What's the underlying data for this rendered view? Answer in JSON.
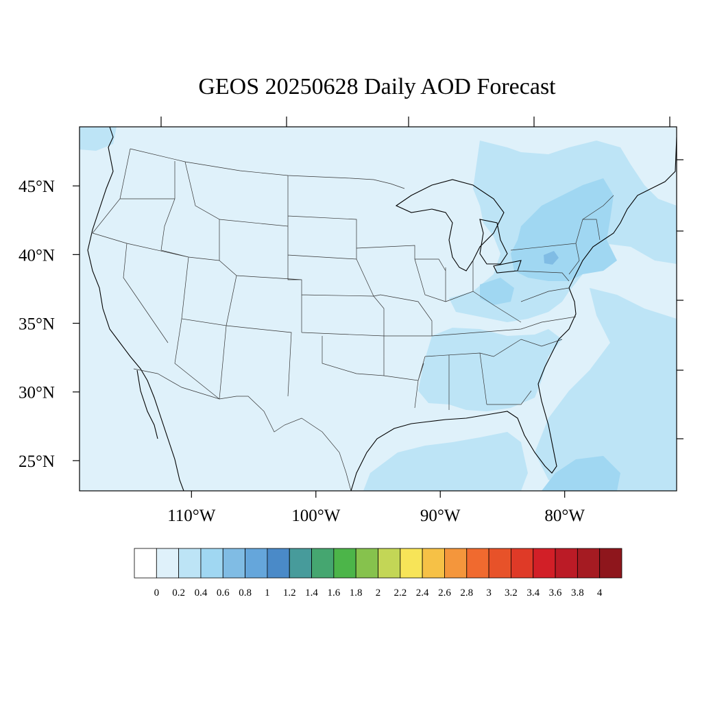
{
  "title": "GEOS 20250628 Daily AOD Forecast",
  "map": {
    "projection": "lat-lon",
    "lon_range": [
      -119,
      -71
    ],
    "lat_range": [
      22.8,
      49.3
    ],
    "lat_ticks": [
      {
        "lat": 45,
        "label": "45°N"
      },
      {
        "lat": 40,
        "label": "40°N"
      },
      {
        "lat": 35,
        "label": "35°N"
      },
      {
        "lat": 30,
        "label": "30°N"
      },
      {
        "lat": 25,
        "label": "25°N"
      }
    ],
    "lon_ticks": [
      {
        "lon": -110,
        "label": "110°W"
      },
      {
        "lon": -100,
        "label": "100°W"
      },
      {
        "lon": -90,
        "label": "90°W"
      },
      {
        "lon": -80,
        "label": "80°W"
      }
    ],
    "background_color": "#dff1fa",
    "aod_regions": [
      {
        "level": 0.2,
        "color": "#bde4f6",
        "description": "Great Lakes to New England band"
      },
      {
        "level": 0.2,
        "color": "#bde4f6",
        "description": "Ohio valley and Southeast"
      },
      {
        "level": 0.2,
        "color": "#bde4f6",
        "description": "Atlantic offshore"
      },
      {
        "level": 0.2,
        "color": "#bde4f6",
        "description": "Gulf of Mexico"
      },
      {
        "level": 0.4,
        "color": "#a0d7f2",
        "description": "Northeast corridor"
      },
      {
        "level": 0.4,
        "color": "#a0d7f2",
        "description": "Bahamas / south Florida"
      },
      {
        "level": 0.6,
        "color": "#80bce4",
        "description": "central Pennsylvania"
      }
    ]
  },
  "colorbar": {
    "colors": [
      "#ffffff",
      "#dff1fa",
      "#bde4f6",
      "#a0d7f2",
      "#80bce4",
      "#65a6db",
      "#4a8ac8",
      "#479b9b",
      "#45a670",
      "#4cb549",
      "#86c24d",
      "#c3d656",
      "#f7e458",
      "#f6c146",
      "#f4963c",
      "#f06a2f",
      "#e75229",
      "#df3a27",
      "#d21f27",
      "#bb1b26",
      "#a51b22",
      "#8e161c"
    ],
    "labels": [
      "0",
      "0.2",
      "0.4",
      "0.6",
      "0.8",
      "1",
      "1.2",
      "1.4",
      "1.6",
      "1.8",
      "2",
      "2.2",
      "2.4",
      "2.6",
      "2.8",
      "3",
      "3.2",
      "3.4",
      "3.6",
      "3.8",
      "4"
    ]
  }
}
